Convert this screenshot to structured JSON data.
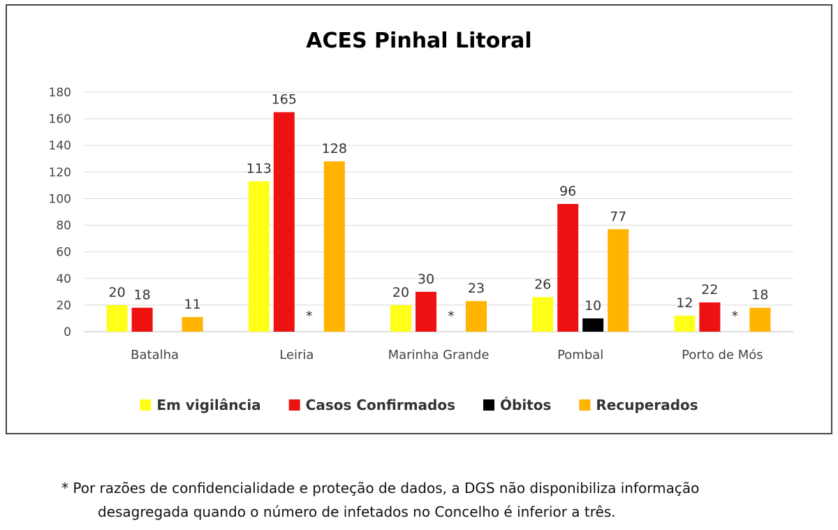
{
  "chart_data": {
    "type": "bar",
    "title": "ACES Pinhal Litoral",
    "categories": [
      "Batalha",
      "Leiria",
      "Marinha Grande",
      "Pombal",
      "Porto de Mós"
    ],
    "series": [
      {
        "name": "Em vigilância",
        "color": "#ffff1a",
        "values": [
          20,
          113,
          20,
          26,
          12
        ]
      },
      {
        "name": "Casos Confirmados",
        "color": "#ee1111",
        "values": [
          18,
          165,
          30,
          96,
          22
        ]
      },
      {
        "name": "Óbitos",
        "color": "#000000",
        "values": [
          null,
          "*",
          "*",
          10,
          "*"
        ]
      },
      {
        "name": "Recuperados",
        "color": "#ffb400",
        "values": [
          11,
          128,
          23,
          77,
          18
        ]
      }
    ],
    "ylim": [
      0,
      180
    ],
    "yticks": [
      0,
      20,
      40,
      60,
      80,
      100,
      120,
      140,
      160,
      180
    ],
    "grid": true,
    "legend_position": "bottom"
  },
  "footnote": {
    "line1": "* Por razões de confidencialidade e proteção de dados, a DGS não disponibiliza informação",
    "line2": "desagregada quando o número de infetados no Concelho é inferior a três."
  }
}
